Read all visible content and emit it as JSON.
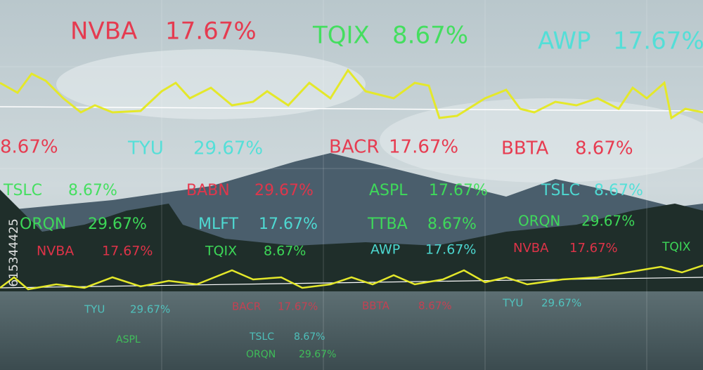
{
  "tickers": [
    {
      "symbol": "NVBA",
      "change": "17.67%",
      "color": "#e8344a"
    },
    {
      "symbol": "TQIX",
      "change": "8.67%",
      "color": "#3ee05a"
    },
    {
      "symbol": "AWP",
      "change": "17.67%",
      "color": "#4fe0d8"
    },
    {
      "change": "8.67%",
      "color": "#e8344a"
    },
    {
      "symbol": "TYU",
      "change": "29.67%",
      "color": "#4fe0d8"
    },
    {
      "symbol": "BACR",
      "change": "17.67%",
      "color": "#e8344a"
    },
    {
      "symbol": "BBTA",
      "change": "8.67%",
      "color": "#e8344a"
    },
    {
      "symbol": "TSLC",
      "change": "8.67%",
      "color": "#3ee05a"
    },
    {
      "symbol": "BABN",
      "change": "29.67%",
      "color": "#e8344a"
    },
    {
      "symbol": "ASPL",
      "change": "17.67%",
      "color": "#3ee05a"
    },
    {
      "symbol": "TSLC",
      "change": "8.67%",
      "color": "#4fe0d8"
    },
    {
      "symbol": "ORQN",
      "change": "29.67%",
      "color": "#3ee05a"
    },
    {
      "symbol": "MLFT",
      "change": "17.67%",
      "color": "#4fe0d8"
    },
    {
      "symbol": "TTBA",
      "change": "8.67%",
      "color": "#3ee05a"
    },
    {
      "symbol": "ORQN",
      "change": "29.67%",
      "color": "#3ee05a"
    },
    {
      "symbol": "NVBA",
      "change": "17.67%",
      "color": "#e8344a"
    },
    {
      "symbol": "TQIX",
      "change": "8.67%",
      "color": "#3ee05a"
    },
    {
      "symbol": "AWP",
      "change": "17.67%",
      "color": "#4fe0d8"
    },
    {
      "symbol": "NVBA",
      "change": "17.67%",
      "color": "#e8344a"
    },
    {
      "symbol": "TQIX",
      "color": "#3ee05a"
    },
    {
      "symbol": "TYU",
      "change": "29.67%",
      "color": "#4fe0d8"
    },
    {
      "symbol": "BACR",
      "change": "17.67%",
      "color": "#e8344a"
    },
    {
      "symbol": "BBTA",
      "change": "8.67%",
      "color": "#e8344a"
    },
    {
      "symbol": "TYU",
      "change": "29.67%",
      "color": "#4fe0d8"
    },
    {
      "symbol": "ASPL",
      "color": "#3ee05a"
    },
    {
      "symbol": "TSLC",
      "change": "8.67%",
      "color": "#4fe0d8"
    },
    {
      "symbol": "ORQN",
      "change": "29.67%",
      "color": "#3ee05a"
    }
  ],
  "watermark": "615344425"
}
